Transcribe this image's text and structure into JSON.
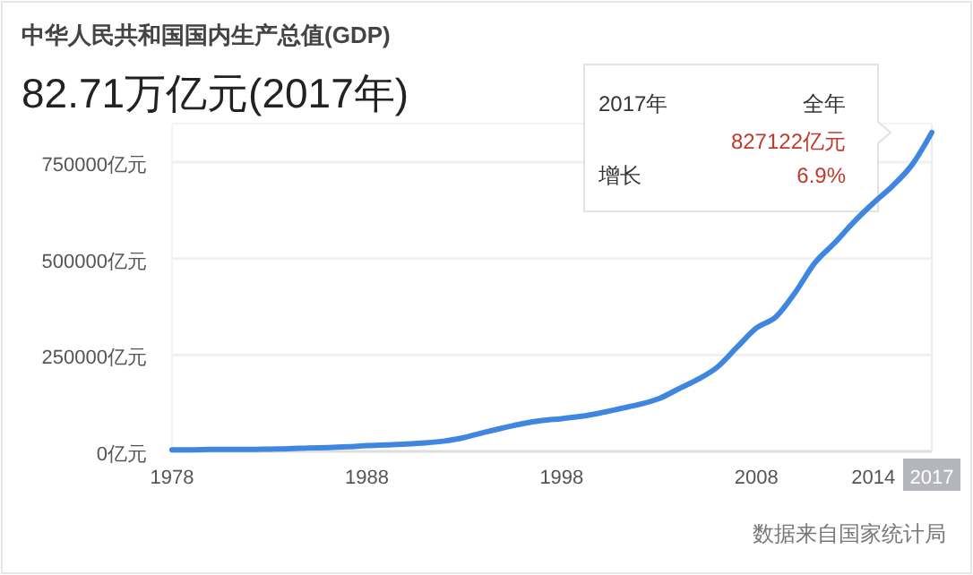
{
  "chart_data": {
    "type": "line",
    "title": "中华人民共和国国内生产总值(GDP)",
    "subtitle": "82.71万亿元(2017年)",
    "x": [
      1978,
      1979,
      1980,
      1981,
      1982,
      1983,
      1984,
      1985,
      1986,
      1987,
      1988,
      1989,
      1990,
      1991,
      1992,
      1993,
      1994,
      1995,
      1996,
      1997,
      1998,
      1999,
      2000,
      2001,
      2002,
      2003,
      2004,
      2005,
      2006,
      2007,
      2008,
      2009,
      2010,
      2011,
      2012,
      2013,
      2014,
      2015,
      2016,
      2017
    ],
    "series": [
      {
        "color": "#3f86e0",
        "values": [
          4000,
          4000,
          5000,
          5000,
          5000,
          6000,
          7000,
          9000,
          10000,
          12000,
          15000,
          17000,
          19000,
          22000,
          27000,
          36000,
          49000,
          61000,
          72000,
          80000,
          85000,
          91000,
          100000,
          111000,
          122000,
          137000,
          162000,
          187000,
          219000,
          270000,
          320000,
          349000,
          413000,
          489000,
          540000,
          595000,
          644000,
          689000,
          744000,
          827122
        ]
      }
    ],
    "xlim": [
      1978,
      2017
    ],
    "xticks": [
      1978,
      1988,
      1998,
      2008,
      2014,
      2017
    ],
    "ylim": [
      0,
      850000
    ],
    "yticks": [
      {
        "value": 0,
        "label": "0亿元"
      },
      {
        "value": 250000,
        "label": "250000亿元"
      },
      {
        "value": 500000,
        "label": "500000亿元"
      },
      {
        "value": 750000,
        "label": "750000亿元"
      }
    ],
    "grid": "y",
    "marker": "none",
    "line_style": "solid",
    "annotations": [
      "2017年",
      "全年",
      "827122亿元",
      "增长",
      "6.9%",
      "数据来自国家统计局"
    ]
  }
}
